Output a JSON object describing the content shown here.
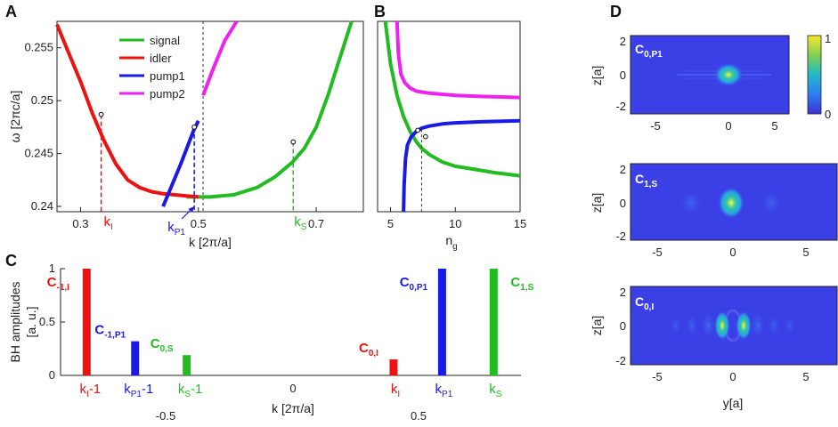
{
  "panel_labels": {
    "A": "A",
    "B": "B",
    "C": "C",
    "D": "D"
  },
  "colors": {
    "signal": "#22bb22",
    "idler": "#ee1111",
    "pump1": "#1a1ae6",
    "pump2": "#ee22ee"
  },
  "chart_data": [
    {
      "panel": "A",
      "type": "line",
      "xlabel": "k [2π/a]",
      "ylabel": "ω [2πc/a]",
      "xlim": [
        0.26,
        0.78
      ],
      "ylim": [
        0.2395,
        0.2575
      ],
      "xticks": [
        "0.3",
        "0.5",
        "0.7"
      ],
      "yticks": [
        "0.24",
        "0.245",
        "0.25",
        "0.255"
      ],
      "legend": [
        "signal",
        "idler",
        "pump1",
        "pump2"
      ],
      "series": [
        {
          "name": "signal",
          "color": "#22bb22",
          "x": [
            0.48,
            0.52,
            0.56,
            0.6,
            0.63,
            0.66,
            0.68,
            0.7,
            0.72,
            0.74,
            0.76
          ],
          "y": [
            0.2409,
            0.2409,
            0.2411,
            0.2418,
            0.2428,
            0.2442,
            0.2455,
            0.2475,
            0.2505,
            0.254,
            0.2578
          ]
        },
        {
          "name": "idler",
          "color": "#ee1111",
          "x": [
            0.26,
            0.28,
            0.3,
            0.32,
            0.34,
            0.36,
            0.38,
            0.4,
            0.42,
            0.44,
            0.46,
            0.48,
            0.5
          ],
          "y": [
            0.2572,
            0.2545,
            0.2518,
            0.2488,
            0.2462,
            0.244,
            0.2425,
            0.2418,
            0.2414,
            0.2412,
            0.2411,
            0.241,
            0.2409
          ]
        },
        {
          "name": "pump1",
          "color": "#1a1ae6",
          "x": [
            0.44,
            0.47,
            0.492,
            0.5
          ],
          "y": [
            0.24,
            0.244,
            0.2472,
            0.2481
          ]
        },
        {
          "name": "pump2",
          "color": "#ee22ee",
          "x": [
            0.508,
            0.525,
            0.545,
            0.565
          ],
          "y": [
            0.2505,
            0.253,
            0.2557,
            0.2585
          ]
        }
      ],
      "markers": [
        {
          "label": "k",
          "sub": "I",
          "color": "#ee1111",
          "x": 0.335,
          "y": 0.2487
        },
        {
          "label": "k",
          "sub": "P1",
          "color": "#1a1ae6",
          "x": 0.493,
          "y": 0.2475
        },
        {
          "label": "k",
          "sub": "S",
          "color": "#22bb22",
          "x": 0.661,
          "y": 0.2461
        }
      ],
      "vline_x": 0.508
    },
    {
      "panel": "B",
      "type": "line",
      "xlabel": "n",
      "xlabel_sub": "g",
      "xlim": [
        4,
        15
      ],
      "ylim": [
        0.2395,
        0.2575
      ],
      "xticks": [
        "5",
        "10",
        "15"
      ],
      "series": [
        {
          "name": "signal",
          "color": "#22bb22",
          "x": [
            4.6,
            5.0,
            5.5,
            6.0,
            6.5,
            7.0,
            7.4,
            8.0,
            9.0,
            10.0,
            11.5,
            13.0,
            15.0
          ],
          "y": [
            0.2575,
            0.2535,
            0.2505,
            0.2485,
            0.2471,
            0.2461,
            0.2455,
            0.2449,
            0.2442,
            0.2438,
            0.2435,
            0.2432,
            0.2429
          ]
        },
        {
          "name": "pump1",
          "color": "#1a1ae6",
          "x": [
            6.0,
            6.05,
            6.15,
            6.3,
            6.6,
            7.0,
            7.4,
            8.0,
            9.0,
            10.0,
            12.0,
            15.0
          ],
          "y": [
            0.2395,
            0.242,
            0.2445,
            0.2458,
            0.2466,
            0.2471,
            0.2474,
            0.2476,
            0.2478,
            0.2479,
            0.248,
            0.2481
          ]
        },
        {
          "name": "pump2",
          "color": "#ee22ee",
          "x": [
            5.5,
            5.6,
            5.8,
            6.1,
            6.5,
            7.0,
            8.0,
            9.0,
            10.0,
            12.0,
            15.0
          ],
          "y": [
            0.2575,
            0.2545,
            0.2525,
            0.2517,
            0.2512,
            0.2509,
            0.2507,
            0.2506,
            0.2505,
            0.2504,
            0.2503
          ]
        }
      ],
      "vline_x": 7.4
    },
    {
      "panel": "C",
      "type": "bar",
      "ylabel": "BH amplitudes",
      "ylabel2": "[a. u.]",
      "xlabel": "k [2π/a]",
      "xlim": [
        -0.75,
        0.75
      ],
      "ylim": [
        0,
        1
      ],
      "yticks": [
        "0",
        "0.5",
        "1"
      ],
      "xticks_below": [
        "-0.5",
        "0",
        "0.5"
      ],
      "bars": [
        {
          "label": "C",
          "sub": "-1,I",
          "color": "#ee1111",
          "x": -0.665,
          "value": 1.0,
          "xlabel": "k",
          "xsub": "I",
          "xsuffix": "-1"
        },
        {
          "label": "C",
          "sub": "-1,P1",
          "color": "#1a1ae6",
          "x": -0.507,
          "value": 0.32,
          "xlabel": "k",
          "xsub": "P1",
          "xsuffix": "-1"
        },
        {
          "label": "C",
          "sub": "0,S",
          "color": "#22bb22",
          "x": -0.339,
          "value": 0.19,
          "xlabel": "k",
          "xsub": "S",
          "xsuffix": "-1"
        },
        {
          "label": "C",
          "sub": "0,I",
          "color": "#ee1111",
          "x": 0.335,
          "value": 0.15,
          "xlabel": "k",
          "xsub": "I",
          "xsuffix": ""
        },
        {
          "label": "C",
          "sub": "0,P1",
          "color": "#1a1ae6",
          "x": 0.493,
          "value": 1.0,
          "xlabel": "k",
          "xsub": "P1",
          "xsuffix": ""
        },
        {
          "label": "C",
          "sub": "1,S",
          "color": "#22bb22",
          "x": 0.661,
          "value": 1.0,
          "xlabel": "k",
          "xsub": "S",
          "xsuffix": ""
        }
      ]
    },
    {
      "panel": "D",
      "type": "heatmap",
      "ylabel": "z[a]",
      "xlabel": "y[a]",
      "colorbar_ticks": [
        "1",
        "0"
      ],
      "maps": [
        {
          "label": "C",
          "sub": "0,P1",
          "xticks": [
            "-5",
            "0",
            "5"
          ],
          "yticks": [
            "2",
            "0",
            "-2"
          ]
        },
        {
          "label": "C",
          "sub": "1,S",
          "xticks": [
            "-5",
            "0",
            "5"
          ],
          "yticks": [
            "2",
            "0",
            "-2"
          ]
        },
        {
          "label": "C",
          "sub": "0,I",
          "xticks": [
            "-5",
            "0",
            "5"
          ],
          "yticks": [
            "2",
            "0",
            "-2"
          ]
        }
      ]
    }
  ]
}
